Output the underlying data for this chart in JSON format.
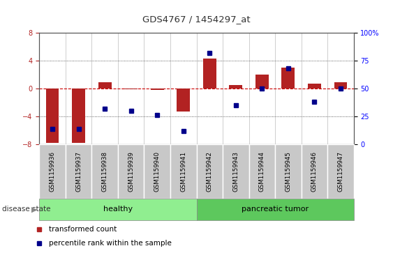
{
  "title": "GDS4767 / 1454297_at",
  "samples": [
    "GSM1159936",
    "GSM1159937",
    "GSM1159938",
    "GSM1159939",
    "GSM1159940",
    "GSM1159941",
    "GSM1159942",
    "GSM1159943",
    "GSM1159944",
    "GSM1159945",
    "GSM1159946",
    "GSM1159947"
  ],
  "transformed_count": [
    -7.8,
    -7.8,
    0.9,
    -0.1,
    -0.15,
    -3.3,
    4.3,
    0.5,
    2.0,
    3.0,
    0.7,
    0.9
  ],
  "percentile_rank": [
    14,
    14,
    32,
    30,
    26,
    12,
    82,
    35,
    50,
    68,
    38,
    50
  ],
  "healthy_count": 6,
  "tumor_count": 6,
  "ylim_left": [
    -8,
    8
  ],
  "ylim_right": [
    0,
    100
  ],
  "bar_color": "#B22222",
  "dot_color": "#00008B",
  "zero_line_color": "#CC0000",
  "dotted_line_color": "#333333",
  "healthy_color": "#90EE90",
  "tumor_color": "#5DC85D",
  "label_bg_color": "#C8C8C8",
  "title_color": "#333333",
  "bar_width": 0.5
}
